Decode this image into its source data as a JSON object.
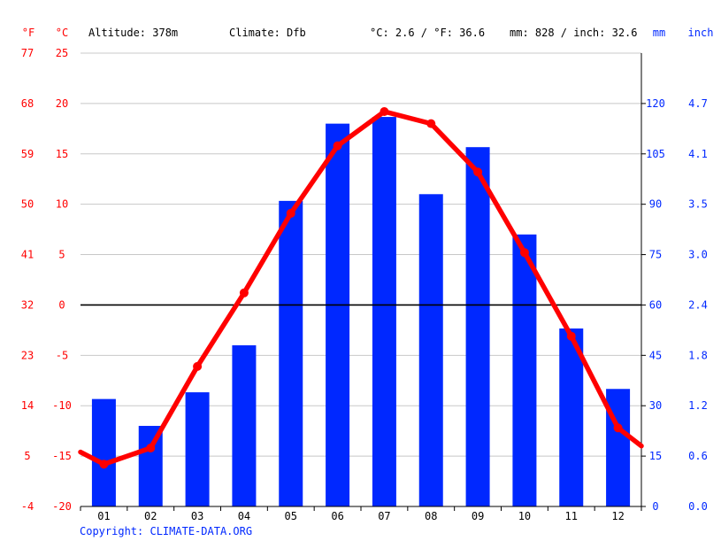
{
  "header": {
    "unit_f": "°F",
    "unit_c": "°C",
    "altitude": "Altitude: 378m",
    "climate": "Climate: Dfb",
    "temp_avg": "°C: 2.6 / °F: 36.6",
    "precip_total": "mm: 828 / inch: 32.6",
    "unit_mm": "mm",
    "unit_inch": "inch"
  },
  "footer": {
    "copyright": "Copyright: CLIMATE-DATA.ORG"
  },
  "colors": {
    "temperature": "#ff0000",
    "precipitation": "#0028ff",
    "grid": "#c8c8c8",
    "zero_line": "#000000",
    "text": "#000000"
  },
  "chart_data": {
    "type": "bar",
    "categories": [
      "01",
      "02",
      "03",
      "04",
      "05",
      "06",
      "07",
      "08",
      "09",
      "10",
      "11",
      "12"
    ],
    "series": [
      {
        "kind": "bar",
        "axis": "right",
        "unit": "mm",
        "values": [
          32,
          24,
          34,
          48,
          91,
          114,
          116,
          93,
          107,
          81,
          53,
          35
        ]
      },
      {
        "kind": "line",
        "axis": "left",
        "unit": "°C",
        "values": [
          -15.8,
          -14.2,
          -6.1,
          1.2,
          9.1,
          15.8,
          19.2,
          18.0,
          13.2,
          5.2,
          -3.1,
          -12.2
        ]
      }
    ],
    "line_edges": {
      "start": -14.6,
      "end": -14.0
    },
    "axes": {
      "celsius": {
        "ticks": [
          25,
          20,
          15,
          10,
          5,
          0,
          -5,
          -10,
          -15,
          -20
        ],
        "ylim": [
          -20,
          25
        ]
      },
      "fahrenheit": {
        "ticks": [
          "77",
          "68",
          "59",
          "50",
          "41",
          "32",
          "23",
          "14",
          "5",
          "-4"
        ]
      },
      "mm": {
        "ticks": [
          "120",
          "105",
          "90",
          "75",
          "60",
          "45",
          "30",
          "15",
          "0"
        ],
        "ylim": [
          0,
          135
        ]
      },
      "inch": {
        "ticks": [
          "4.7",
          "4.1",
          "3.5",
          "3.0",
          "2.4",
          "1.8",
          "1.2",
          "0.6",
          "0.0"
        ]
      }
    },
    "grid": true
  }
}
